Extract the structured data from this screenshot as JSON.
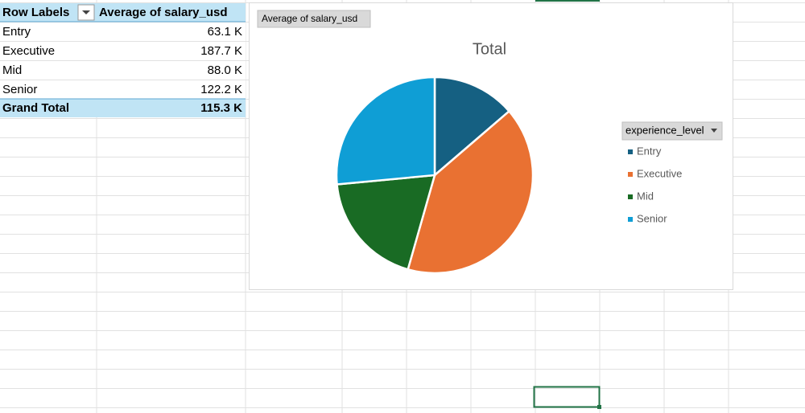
{
  "pivot": {
    "headers": [
      "Row Labels",
      "Average of salary_usd"
    ],
    "rows": [
      [
        "Entry",
        "63.1 K"
      ],
      [
        "Executive",
        "187.7 K"
      ],
      [
        "Mid",
        "88.0 K"
      ],
      [
        "Senior",
        "122.2 K"
      ]
    ],
    "total": [
      "Grand Total",
      "115.3 K"
    ]
  },
  "chart_data": {
    "type": "pie",
    "field_button": "Average of salary_usd",
    "title": "Total",
    "legend_title": "experience_level",
    "categories": [
      "Entry",
      "Executive",
      "Mid",
      "Senior"
    ],
    "values": [
      63.1,
      187.7,
      88.0,
      122.2
    ],
    "colors": [
      "#156082",
      "#e97132",
      "#196b24",
      "#0f9ed5"
    ],
    "legend": "right"
  }
}
